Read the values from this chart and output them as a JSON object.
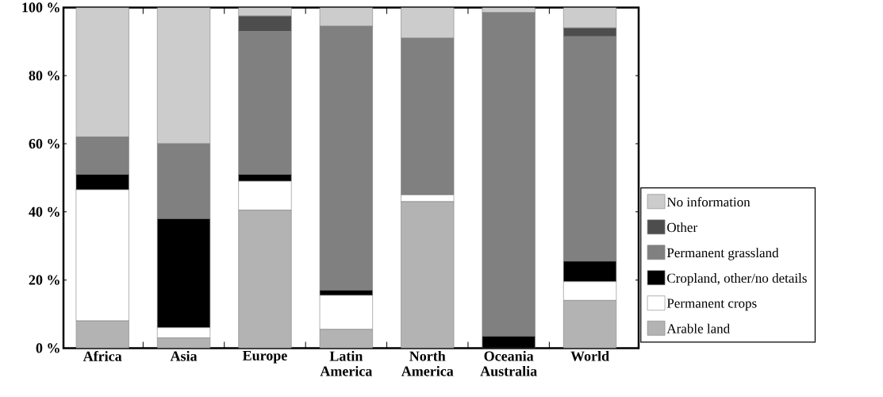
{
  "chart_data": {
    "type": "bar",
    "stacked": true,
    "legend": "right",
    "categories": [
      "Africa",
      "Asia",
      "Europe",
      "Latin America",
      "North America",
      "Oceania Australia",
      "World"
    ],
    "ylim": [
      0,
      100
    ],
    "yticks": [
      {
        "value": 0,
        "label": "0 %"
      },
      {
        "value": 20,
        "label": "20 %"
      },
      {
        "value": 40,
        "label": "40 %"
      },
      {
        "value": 60,
        "label": "60 %"
      },
      {
        "value": 80,
        "label": "80 %"
      },
      {
        "value": 100,
        "label": "100 %"
      }
    ],
    "series": [
      {
        "name": "Arable land",
        "color": "#b3b3b3",
        "values": [
          8,
          3,
          40.5,
          5.5,
          43,
          0,
          14
        ]
      },
      {
        "name": "Permanent crops",
        "color": "#ffffff",
        "values": [
          38.5,
          3,
          8.5,
          10,
          2,
          0,
          5.5
        ]
      },
      {
        "name": "Cropland, other/no details",
        "color": "#000000",
        "values": [
          4.5,
          32,
          2,
          1.5,
          0,
          3.5,
          6
        ]
      },
      {
        "name": "Permanent grassland",
        "color": "#808080",
        "values": [
          11,
          22,
          42,
          77.5,
          46,
          95,
          66
        ]
      },
      {
        "name": "Other",
        "color": "#4d4d4d",
        "values": [
          0,
          0,
          4.5,
          0,
          0,
          0,
          2.5
        ]
      },
      {
        "name": "No information",
        "color": "#cccccc",
        "values": [
          38,
          40,
          2.5,
          5.5,
          9,
          1.5,
          6
        ]
      }
    ]
  }
}
